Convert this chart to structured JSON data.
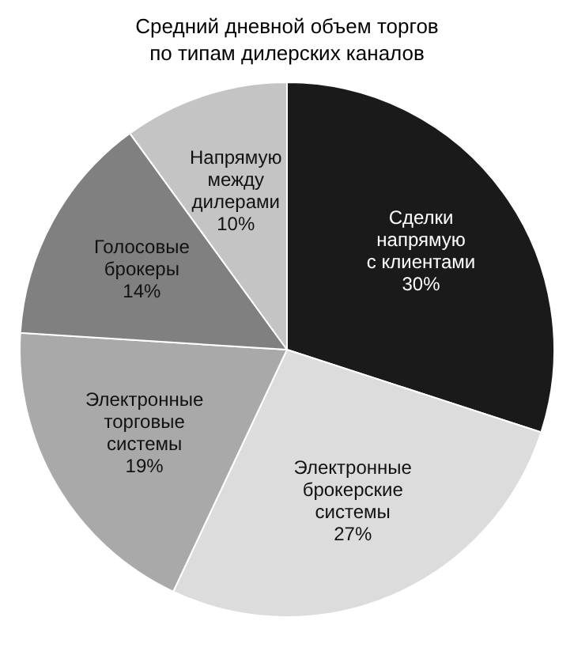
{
  "chart_data": {
    "type": "pie",
    "title": "Средний дневной объем торгов\nпо типам дилерских каналов",
    "categories": [
      "Сделки\nнапрямую\nс клиентами",
      "Электронные\nброкерские\nсистемы",
      "Электронные\nторговые\nсистемы",
      "Голосовые\nброкеры",
      "Напрямую\nмежду\nдилерами"
    ],
    "values": [
      30,
      27,
      19,
      14,
      10
    ],
    "value_labels": [
      "30%",
      "27%",
      "19%",
      "14%",
      "10%"
    ],
    "colors": [
      "#1a1a1a",
      "#dcdcdc",
      "#a9a9a9",
      "#808080",
      "#c4c4c4"
    ],
    "legend": false
  }
}
